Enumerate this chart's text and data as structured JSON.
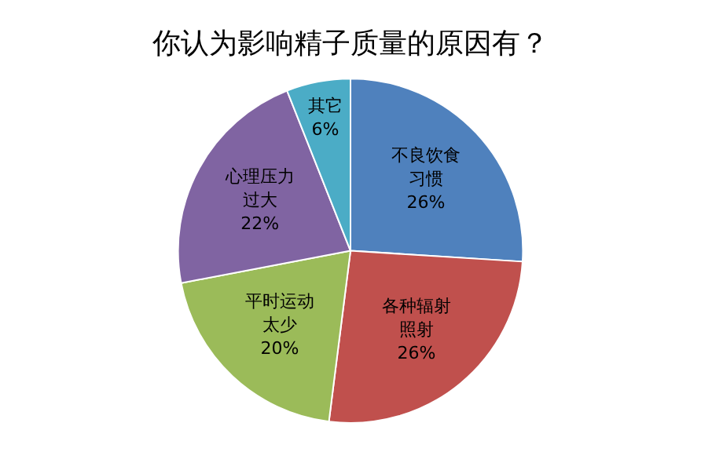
{
  "chart_data": {
    "type": "pie",
    "title": "你认为影响精子质量的原因有？",
    "categories": [
      "不良饮食习惯",
      "各种辐射照射",
      "平时运动太少",
      "心理压力过大",
      "其它"
    ],
    "values": [
      26,
      26,
      20,
      22,
      6
    ],
    "value_labels": [
      "26%",
      "26%",
      "20%",
      "22%",
      "6%"
    ],
    "colors": [
      "#4f81bd",
      "#c0504d",
      "#9bbb59",
      "#8064a2",
      "#4bacc6"
    ],
    "legend": false
  }
}
